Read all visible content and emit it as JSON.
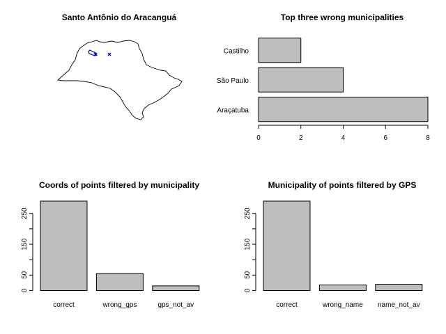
{
  "chart_data": [
    {
      "type": "map",
      "title": "Santo Antônio do Aracanguá",
      "region_outline": "São Paulo state",
      "markers": [
        {
          "symbol": "x",
          "color": "#0000cc",
          "count": 2
        },
        {
          "symbol": "polygon",
          "color": "#0000cc",
          "count": 1
        }
      ]
    },
    {
      "type": "bar",
      "orientation": "horizontal",
      "title": "Top three wrong municipalities",
      "categories": [
        "Araçatuba",
        "São Paulo",
        "Castilho"
      ],
      "values": [
        8,
        4,
        2
      ],
      "xlim": [
        0,
        8
      ],
      "xticks": [
        "0",
        "2",
        "4",
        "6",
        "8"
      ],
      "bar_color": "#bebebe"
    },
    {
      "type": "bar",
      "orientation": "vertical",
      "title": "Coords of points filtered by municipality",
      "categories": [
        "correct",
        "wrong_gps",
        "gps_not_av"
      ],
      "values": [
        290,
        55,
        15
      ],
      "ylim": [
        0,
        290
      ],
      "yticks": [
        "0",
        "50",
        "150",
        "250"
      ],
      "bar_color": "#bebebe"
    },
    {
      "type": "bar",
      "orientation": "vertical",
      "title": "Municipality of points filtered by GPS",
      "categories": [
        "correct",
        "wrong_name",
        "name_not_av"
      ],
      "values": [
        290,
        18,
        20
      ],
      "ylim": [
        0,
        290
      ],
      "yticks": [
        "0",
        "50",
        "150",
        "250"
      ],
      "bar_color": "#bebebe"
    }
  ]
}
